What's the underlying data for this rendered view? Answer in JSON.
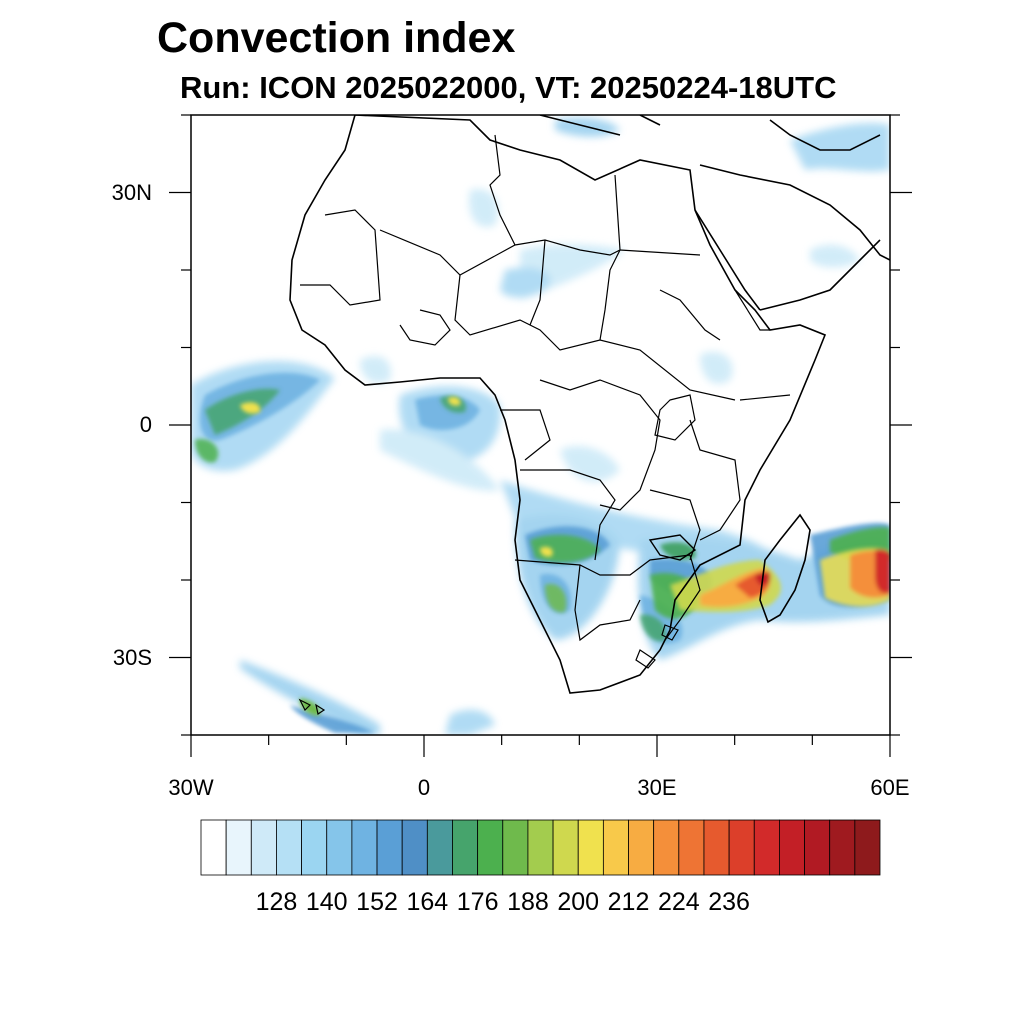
{
  "title": "Convection index",
  "subtitle": "Run: ICON 2025022000,  VT: 20250224-18UTC",
  "map": {
    "lon_range": [
      -30,
      60
    ],
    "lat_range": [
      -40,
      40
    ],
    "lat_ticks": [
      {
        "value": 30,
        "label": "30N"
      },
      {
        "value": 0,
        "label": "0"
      },
      {
        "value": -30,
        "label": "30S"
      }
    ],
    "lon_ticks": [
      {
        "value": -30,
        "label": "30W"
      },
      {
        "value": 0,
        "label": "0"
      },
      {
        "value": 30,
        "label": "30E"
      },
      {
        "value": 60,
        "label": "60E"
      }
    ]
  },
  "colorbar": {
    "colors": [
      "#ffffff",
      "#e8f5fc",
      "#cfeaf8",
      "#b5e0f5",
      "#9bd5f1",
      "#85c5ea",
      "#6fb3e2",
      "#5a9fd6",
      "#4f8fc6",
      "#4a9a9c",
      "#46a46c",
      "#4cb04e",
      "#6fba4c",
      "#a3cc4e",
      "#cfd84e",
      "#f0e14e",
      "#f8c94a",
      "#f7ac42",
      "#f48f3a",
      "#ee7434",
      "#e65a2e",
      "#dc3f2a",
      "#d22a2a",
      "#c31f26",
      "#b11a23",
      "#9f1a1f",
      "#8e1a1c"
    ],
    "labels": [
      "128",
      "140",
      "152",
      "164",
      "176",
      "188",
      "200",
      "212",
      "224",
      "236"
    ]
  },
  "colors": {
    "coast": "#000000",
    "frame": "#000000"
  }
}
